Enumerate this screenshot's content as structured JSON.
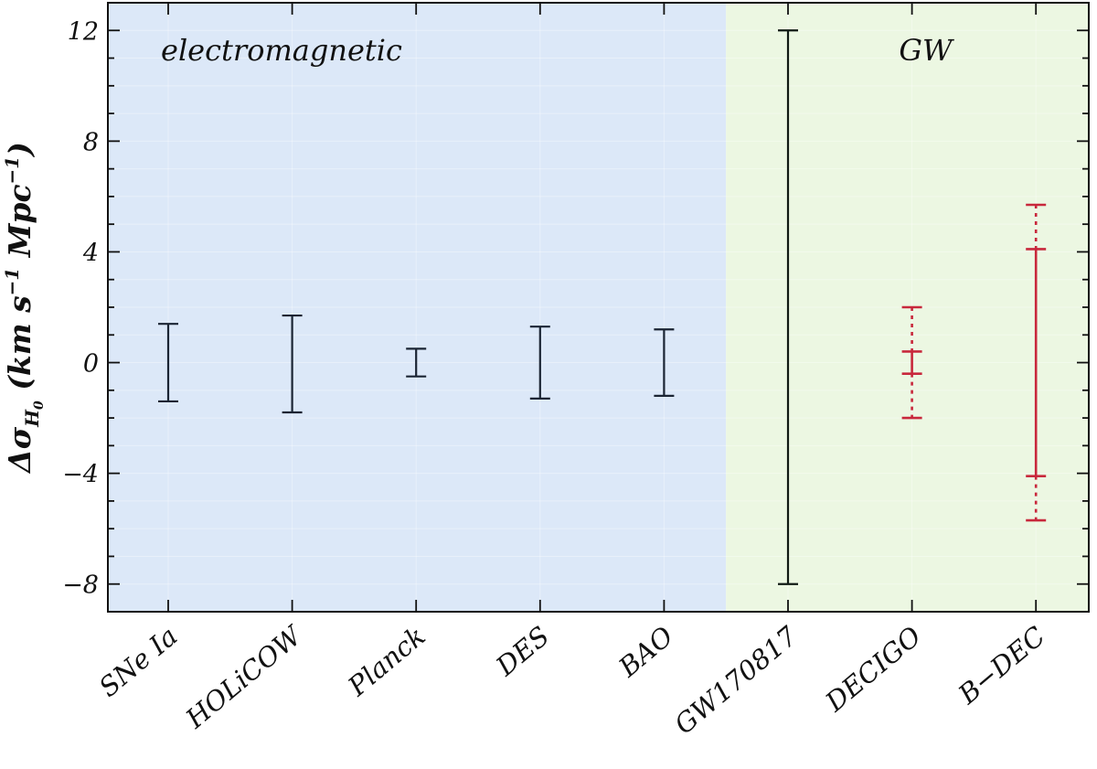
{
  "chart_data": {
    "type": "errorbar",
    "ylabel": {
      "prefix": "Δσ",
      "sub": "H",
      "subsub": "0",
      "paren_open": " (km s",
      "sup1": "−1",
      "mid": " Mpc",
      "sup2": "−1",
      "paren_close": ")"
    },
    "ylim": [
      -9,
      13
    ],
    "yticks": [
      {
        "value": -8,
        "label": "−8"
      },
      {
        "value": -4,
        "label": "−4"
      },
      {
        "value": 0,
        "label": "0"
      },
      {
        "value": 4,
        "label": "4"
      },
      {
        "value": 8,
        "label": "8"
      },
      {
        "value": 12,
        "label": "12"
      }
    ],
    "minor_tick_step": 1,
    "regions": [
      {
        "name": "electromagnetic",
        "label": "electromagnetic",
        "from_index": 0,
        "to_index": 4,
        "color": "#dce8f8"
      },
      {
        "name": "gw",
        "label": "GW",
        "from_index": 5,
        "to_index": 7,
        "color": "#ecf7e2"
      }
    ],
    "categories": [
      "SNe Ia",
      "HOLiCOW",
      "Planck",
      "DES",
      "BAO",
      "GW170817",
      "DECIGO",
      "B−DEC"
    ],
    "points": [
      {
        "category": "SNe Ia",
        "y": 0,
        "low": -1.4,
        "high": 1.4,
        "color": "#1a2433",
        "style": "solid"
      },
      {
        "category": "HOLiCOW",
        "y": 0,
        "low": -1.8,
        "high": 1.7,
        "color": "#1a2433",
        "style": "solid"
      },
      {
        "category": "Planck",
        "y": 0,
        "low": -0.5,
        "high": 0.5,
        "color": "#1a2433",
        "style": "solid"
      },
      {
        "category": "DES",
        "y": 0,
        "low": -1.3,
        "high": 1.3,
        "color": "#1a2433",
        "style": "solid"
      },
      {
        "category": "BAO",
        "y": 0,
        "low": -1.2,
        "high": 1.2,
        "color": "#1a2433",
        "style": "solid"
      },
      {
        "category": "GW170817",
        "y": 0,
        "low": -8,
        "high": 12,
        "color": "#111a14",
        "style": "solid"
      },
      {
        "category": "DECIGO",
        "y": 0,
        "low": -0.4,
        "high": 0.4,
        "outer_low": -2.0,
        "outer_high": 2.0,
        "color": "#c8283c",
        "style": "solid-inner-dotted-outer"
      },
      {
        "category": "B−DEC",
        "y": 0,
        "low": -4.1,
        "high": 4.1,
        "outer_low": -5.7,
        "outer_high": 5.7,
        "color": "#c8283c",
        "style": "solid-inner-dotted-outer"
      }
    ],
    "grid": true,
    "legend": "none"
  }
}
